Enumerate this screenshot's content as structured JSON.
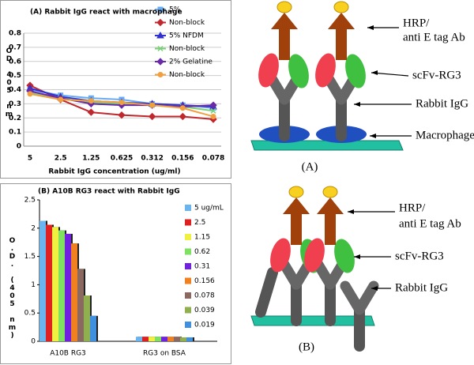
{
  "chart_data": [
    {
      "type": "line",
      "title": "(A) Rabbit IgG react with macrophage",
      "x_label": "Rabbit IgG concentration (ug/ml)",
      "y_label": "OD 405 nm",
      "categories": [
        "5",
        "2.5",
        "1.25",
        "0.625",
        "0.312",
        "0.156",
        "0.078"
      ],
      "ylim": [
        0,
        0.8
      ],
      "yticks": [
        0,
        0.1,
        0.2,
        0.3,
        0.4,
        0.5,
        0.6,
        0.7,
        0.8
      ],
      "grid": true,
      "legend": "upper right",
      "series": [
        {
          "name": "5%",
          "color": "#6aaaf0",
          "marker": "square",
          "values": [
            0.4,
            0.36,
            0.34,
            0.33,
            0.3,
            0.29,
            0.27
          ]
        },
        {
          "name": "Non-block",
          "color": "#c0282e",
          "marker": "diamond",
          "values": [
            0.43,
            0.33,
            0.24,
            0.22,
            0.21,
            0.21,
            0.19
          ]
        },
        {
          "name": "5% NFDM",
          "color": "#3030d0",
          "marker": "triangle",
          "values": [
            0.41,
            0.35,
            0.32,
            0.31,
            0.3,
            0.29,
            0.28
          ]
        },
        {
          "name": "Non-block",
          "color": "#7ad07a",
          "marker": "x",
          "values": [
            0.38,
            0.34,
            0.31,
            0.3,
            0.29,
            0.28,
            0.25
          ]
        },
        {
          "name": "2% Gelatine",
          "color": "#6a2aa8",
          "marker": "diamond",
          "values": [
            0.39,
            0.34,
            0.3,
            0.29,
            0.29,
            0.28,
            0.29
          ]
        },
        {
          "name": "Non-block",
          "color": "#f0a040",
          "marker": "circle",
          "values": [
            0.37,
            0.33,
            0.32,
            0.31,
            0.29,
            0.27,
            0.21
          ]
        }
      ]
    },
    {
      "type": "bar",
      "title": "(B) A10B RG3 react with Rabbit IgG",
      "y_label": "O.D. (405 nm)",
      "categories": [
        "A10B RG3",
        "RG3 on BSA"
      ],
      "ylim": [
        0,
        2.5
      ],
      "yticks": [
        0,
        0.5,
        1,
        1.5,
        2,
        2.5
      ],
      "legend": "right",
      "series": [
        {
          "name": "5 ug/mL",
          "color": "#6ab4f0",
          "values": [
            2.13,
            0.08
          ]
        },
        {
          "name": "2.5",
          "color": "#e02020",
          "values": [
            2.06,
            0.08
          ]
        },
        {
          "name": "1.15",
          "color": "#f0f040",
          "values": [
            2.02,
            0.08
          ]
        },
        {
          "name": "0.62",
          "color": "#80e060",
          "values": [
            1.96,
            0.08
          ]
        },
        {
          "name": "0.31",
          "color": "#7020e0",
          "values": [
            1.9,
            0.08
          ]
        },
        {
          "name": "0.156",
          "color": "#f08020",
          "values": [
            1.73,
            0.08
          ]
        },
        {
          "name": "0.078",
          "color": "#8a6a60",
          "values": [
            1.28,
            0.08
          ]
        },
        {
          "name": "0.039",
          "color": "#90b050",
          "values": [
            0.81,
            0.07
          ]
        },
        {
          "name": "0.019",
          "color": "#4090e0",
          "values": [
            0.45,
            0.07
          ]
        }
      ]
    }
  ],
  "diagrams": [
    {
      "caption": "(A)",
      "hrp": [
        "HRP/",
        "anti E tag Ab"
      ],
      "scfv": "scFv-RG3",
      "igg": "Rabbit IgG",
      "cell": "Macrophage"
    },
    {
      "caption": "(B)",
      "hrp": [
        "HRP/",
        "anti E tag Ab"
      ],
      "scfv": "scFv-RG3",
      "igg": "Rabbit IgG"
    }
  ]
}
